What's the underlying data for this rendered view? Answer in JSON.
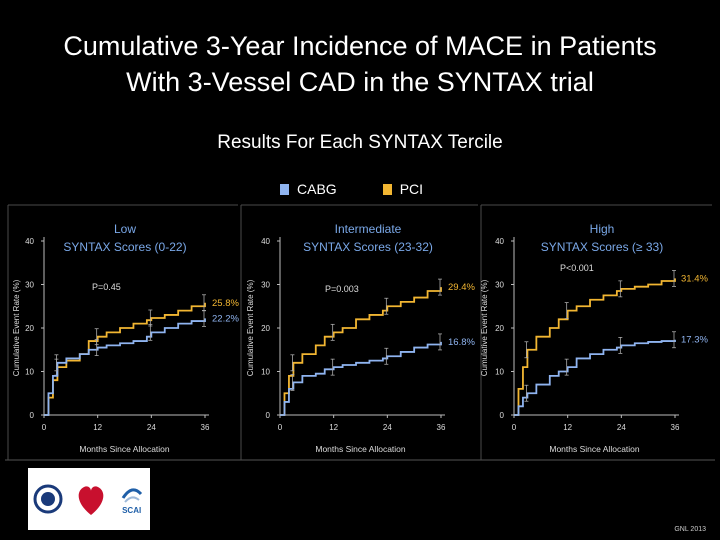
{
  "slide": {
    "title_line1": "Cumulative 3-Year Incidence of MACE in Patients",
    "title_line2": "With 3-Vessel CAD in the SYNTAX trial",
    "subtitle": "Results For Each SYNTAX Tercile",
    "footnote": "GNL 2013"
  },
  "legend": [
    {
      "name": "CABG",
      "color": "#8fb4f0"
    },
    {
      "name": "PCI",
      "color": "#f2b632"
    }
  ],
  "logos": [
    {
      "name": "society-seal-icon"
    },
    {
      "name": "heart-association-icon"
    },
    {
      "name": "scai-icon",
      "label": "SCAI"
    }
  ],
  "chart_data": [
    {
      "type": "line",
      "panel_title": "Low",
      "panel_subtitle": "SYNTAX Scores (0-22)",
      "p_value": "P=0.45",
      "xlabel": "Months Since Allocation",
      "ylabel": "Cumulative Event Rate (%)",
      "xticks": [
        "0",
        "12",
        "24",
        "36"
      ],
      "yticks": [
        "0",
        "10",
        "20",
        "30",
        "40"
      ],
      "xlim": [
        0,
        36
      ],
      "ylim": [
        0,
        40
      ],
      "series": [
        {
          "name": "PCI",
          "color": "#f2b632",
          "end_label": "25.8%",
          "x": [
            0,
            1,
            2,
            3,
            5,
            8,
            10,
            12,
            14,
            17,
            20,
            23,
            24,
            27,
            30,
            33,
            36
          ],
          "y": [
            0,
            4,
            8,
            11,
            12.5,
            14,
            17,
            18,
            19,
            20,
            21,
            21.8,
            22.3,
            23,
            24,
            25,
            25.8
          ]
        },
        {
          "name": "CABG",
          "color": "#8fb4f0",
          "end_label": "22.2%",
          "x": [
            0,
            1,
            2,
            3,
            5,
            8,
            10,
            12,
            14,
            17,
            20,
            23,
            24,
            27,
            30,
            33,
            36
          ],
          "y": [
            0,
            5,
            9,
            12,
            13,
            14,
            15,
            15.5,
            16,
            16.5,
            17,
            18,
            19,
            20,
            21,
            21.6,
            22.2
          ]
        }
      ]
    },
    {
      "type": "line",
      "panel_title": "Intermediate",
      "panel_subtitle": "SYNTAX Scores (23-32)",
      "p_value": "P=0.003",
      "xlabel": "Months Since Allocation",
      "ylabel": "Cumulative Event Rate (%)",
      "xticks": [
        "0",
        "12",
        "24",
        "36"
      ],
      "yticks": [
        "0",
        "10",
        "20",
        "30",
        "40"
      ],
      "xlim": [
        0,
        36
      ],
      "ylim": [
        0,
        40
      ],
      "series": [
        {
          "name": "PCI",
          "color": "#f2b632",
          "end_label": "29.4%",
          "x": [
            0,
            1,
            2,
            3,
            5,
            8,
            10,
            12,
            14,
            17,
            20,
            23,
            24,
            27,
            30,
            33,
            36
          ],
          "y": [
            0,
            5,
            9,
            12,
            14,
            16,
            18,
            19,
            20,
            22,
            23,
            24,
            25,
            26,
            27,
            28.5,
            29.4
          ]
        },
        {
          "name": "CABG",
          "color": "#8fb4f0",
          "end_label": "16.8%",
          "x": [
            0,
            1,
            2,
            3,
            5,
            8,
            10,
            12,
            14,
            17,
            20,
            23,
            24,
            27,
            30,
            33,
            36
          ],
          "y": [
            0,
            3,
            6,
            7.5,
            9,
            9.5,
            10.5,
            11,
            11.5,
            12,
            12.5,
            13,
            13.5,
            14.5,
            15.5,
            16.2,
            16.8
          ]
        }
      ]
    },
    {
      "type": "line",
      "panel_title": "High",
      "panel_subtitle": "SYNTAX Scores (≥ 33)",
      "p_value": "P<0.001",
      "xlabel": "Months Since Allocation",
      "ylabel": "Cumulative Event Rate (%)",
      "xticks": [
        "0",
        "12",
        "24",
        "36"
      ],
      "yticks": [
        "0",
        "10",
        "20",
        "30",
        "40"
      ],
      "xlim": [
        0,
        36
      ],
      "ylim": [
        0,
        40
      ],
      "series": [
        {
          "name": "PCI",
          "color": "#f2b632",
          "end_label": "31.4%",
          "x": [
            0,
            1,
            2,
            3,
            5,
            8,
            10,
            12,
            14,
            17,
            20,
            23,
            24,
            27,
            30,
            33,
            36
          ],
          "y": [
            0,
            6,
            11,
            15,
            18,
            20,
            22,
            24,
            25,
            26.5,
            27.5,
            28.5,
            29,
            29.5,
            30,
            30.8,
            31.4
          ]
        },
        {
          "name": "CABG",
          "color": "#8fb4f0",
          "end_label": "17.3%",
          "x": [
            0,
            1,
            2,
            3,
            5,
            8,
            10,
            12,
            14,
            17,
            20,
            23,
            24,
            27,
            30,
            33,
            36
          ],
          "y": [
            0,
            2,
            4,
            5,
            7,
            9,
            10,
            11,
            13,
            14,
            15,
            15.5,
            16,
            16.5,
            16.8,
            17,
            17.3
          ]
        }
      ]
    }
  ]
}
